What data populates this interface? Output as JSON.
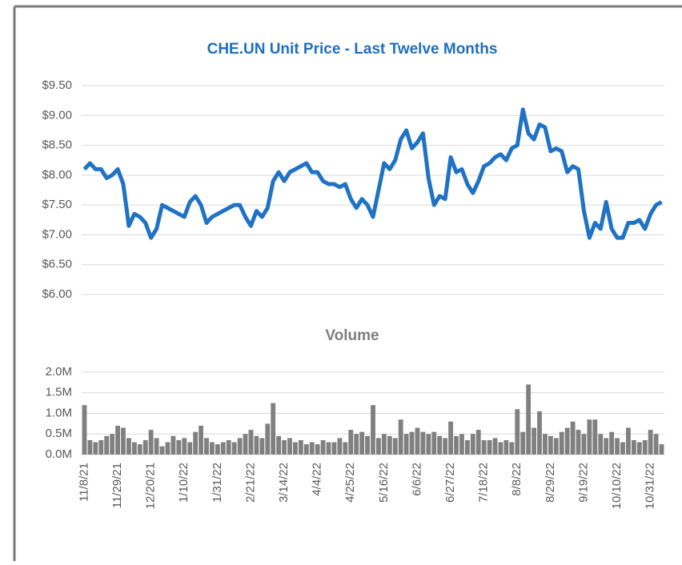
{
  "chart_data": [
    {
      "type": "line",
      "title": "CHE.UN Unit Price - Last Twelve Months",
      "color": "#1f72c4",
      "grid": true,
      "ylim": [
        6,
        9.5
      ],
      "yticks": [
        {
          "value": 9.5,
          "label": "$9.50"
        },
        {
          "value": 9,
          "label": "$9.00"
        },
        {
          "value": 8.5,
          "label": "$8.50"
        },
        {
          "value": 8,
          "label": "$8.00"
        },
        {
          "value": 7.5,
          "label": "$7.50"
        },
        {
          "value": 7,
          "label": "$7.00"
        },
        {
          "value": 6.5,
          "label": "$6.50"
        },
        {
          "value": 6,
          "label": "$6.00"
        }
      ],
      "values": [
        8.1,
        8.2,
        8.1,
        8.1,
        7.95,
        8.0,
        8.1,
        7.85,
        7.15,
        7.35,
        7.3,
        7.2,
        6.95,
        7.1,
        7.5,
        7.45,
        7.4,
        7.35,
        7.3,
        7.55,
        7.65,
        7.5,
        7.2,
        7.3,
        7.35,
        7.4,
        7.45,
        7.5,
        7.5,
        7.3,
        7.15,
        7.4,
        7.3,
        7.45,
        7.9,
        8.05,
        7.9,
        8.05,
        8.1,
        8.15,
        8.2,
        8.05,
        8.05,
        7.9,
        7.85,
        7.85,
        7.8,
        7.85,
        7.6,
        7.45,
        7.6,
        7.5,
        7.3,
        7.75,
        8.2,
        8.1,
        8.25,
        8.6,
        8.75,
        8.45,
        8.55,
        8.7,
        7.95,
        7.5,
        7.65,
        7.6,
        8.3,
        8.05,
        8.1,
        7.85,
        7.7,
        7.9,
        8.15,
        8.2,
        8.3,
        8.35,
        8.25,
        8.45,
        8.5,
        9.1,
        8.7,
        8.6,
        8.85,
        8.8,
        8.4,
        8.45,
        8.4,
        8.05,
        8.15,
        8.1,
        7.4,
        6.95,
        7.2,
        7.1,
        7.55,
        7.1,
        6.95,
        6.95,
        7.2,
        7.2,
        7.25,
        7.1,
        7.35,
        7.5,
        7.55
      ]
    },
    {
      "type": "bar",
      "title": "Volume",
      "color": "#808080",
      "grid": true,
      "ylim": [
        0,
        2000000
      ],
      "yticks": [
        {
          "value": 0,
          "label": "0.0M"
        },
        {
          "value": 500000,
          "label": "0.5M"
        },
        {
          "value": 1000000,
          "label": "1.0M"
        },
        {
          "value": 1500000,
          "label": "1.5M"
        },
        {
          "value": 2000000,
          "label": "2.0M"
        }
      ],
      "categories": [
        "11/8/21",
        null,
        null,
        null,
        null,
        null,
        "11/29/21",
        null,
        null,
        null,
        null,
        null,
        "12/20/21",
        null,
        null,
        null,
        null,
        null,
        "1/10/22",
        null,
        null,
        null,
        null,
        null,
        "1/31/22",
        null,
        null,
        null,
        null,
        null,
        "2/21/22",
        null,
        null,
        null,
        null,
        null,
        "3/14/22",
        null,
        null,
        null,
        null,
        null,
        "4/4/22",
        null,
        null,
        null,
        null,
        null,
        "4/25/22",
        null,
        null,
        null,
        null,
        null,
        "5/16/22",
        null,
        null,
        null,
        null,
        null,
        "6/6/22",
        null,
        null,
        null,
        null,
        null,
        "6/27/22",
        null,
        null,
        null,
        null,
        null,
        "7/18/22",
        null,
        null,
        null,
        null,
        null,
        "8/8/22",
        null,
        null,
        null,
        null,
        null,
        "8/29/22",
        null,
        null,
        null,
        null,
        null,
        "9/19/22",
        null,
        null,
        null,
        null,
        null,
        "10/10/22",
        null,
        null,
        null,
        null,
        null,
        "10/31/22",
        null,
        null
      ],
      "values": [
        1200000,
        350000,
        300000,
        350000,
        450000,
        500000,
        700000,
        650000,
        400000,
        300000,
        250000,
        350000,
        600000,
        400000,
        200000,
        300000,
        450000,
        350000,
        400000,
        300000,
        550000,
        700000,
        400000,
        300000,
        250000,
        300000,
        350000,
        300000,
        400000,
        500000,
        600000,
        450000,
        400000,
        750000,
        1250000,
        450000,
        350000,
        400000,
        300000,
        350000,
        250000,
        300000,
        250000,
        350000,
        300000,
        300000,
        400000,
        300000,
        600000,
        500000,
        550000,
        450000,
        1200000,
        400000,
        500000,
        450000,
        400000,
        850000,
        500000,
        550000,
        650000,
        550000,
        500000,
        550000,
        450000,
        400000,
        800000,
        450000,
        500000,
        350000,
        500000,
        600000,
        350000,
        350000,
        400000,
        300000,
        350000,
        300000,
        1100000,
        550000,
        1700000,
        650000,
        1050000,
        500000,
        450000,
        400000,
        550000,
        650000,
        800000,
        600000,
        500000,
        850000,
        850000,
        500000,
        400000,
        550000,
        400000,
        300000,
        650000,
        350000,
        300000,
        350000,
        600000,
        500000,
        250000
      ]
    }
  ]
}
